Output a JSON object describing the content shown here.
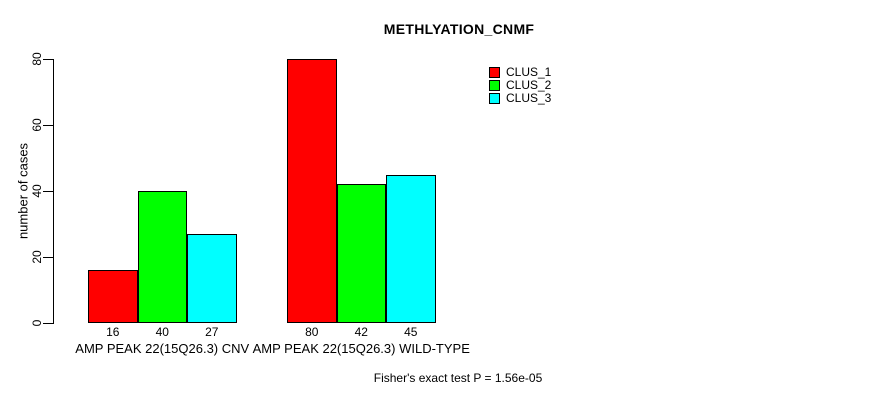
{
  "chart_data": {
    "type": "bar",
    "title": "METHLYATION_CNMF",
    "xlabel": "",
    "ylabel": "number of cases",
    "categories": [
      "AMP PEAK 22(15Q26.3) CNV",
      "AMP PEAK 22(15Q26.3) WILD-TYPE"
    ],
    "series": [
      {
        "name": "CLUS_1",
        "color": "#ff0000",
        "values": [
          16,
          80
        ]
      },
      {
        "name": "CLUS_2",
        "color": "#00ff00",
        "values": [
          40,
          42
        ]
      },
      {
        "name": "CLUS_3",
        "color": "#00ffff",
        "values": [
          27,
          45
        ]
      }
    ],
    "ylim": [
      0,
      80
    ],
    "yticks": [
      0,
      20,
      40,
      60,
      80
    ],
    "show_bar_value_labels": true,
    "bar_border_color": "#000000",
    "legend_position": "top-right",
    "grid": false,
    "annotation": "Fisher's exact test P = 1.56e-05"
  }
}
